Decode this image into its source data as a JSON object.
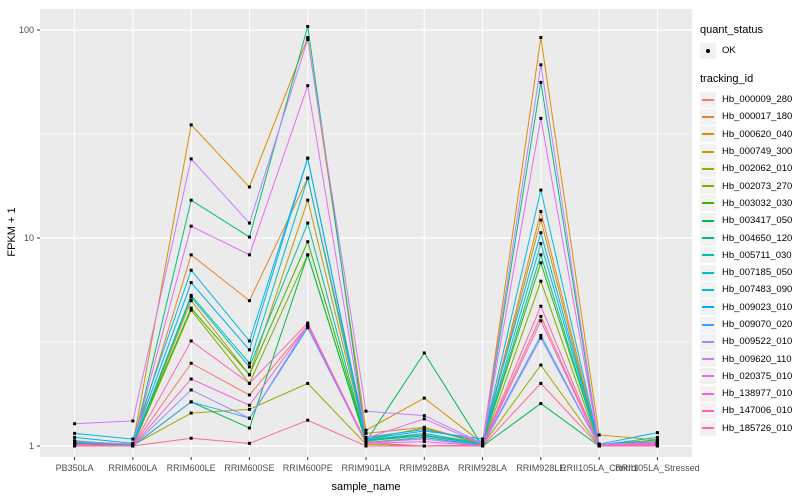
{
  "chart_data": {
    "type": "line",
    "title": "",
    "xlabel": "sample_name",
    "ylabel": "FPKM + 1",
    "y_scale": "log10",
    "y_ticks": [
      "1",
      "10",
      "100"
    ],
    "y_minor_ticks": [
      3.1623,
      31.623
    ],
    "ylim": [
      0.88,
      125
    ],
    "grid": true,
    "legend_position": "right",
    "point_label": "OK",
    "categories": [
      "PB350LA",
      "RRIM600LA",
      "RRIM600LE",
      "RRIM600SE",
      "RRIM600PE",
      "RRIM901LA",
      "RRIM928BA",
      "RRIM928LA",
      "RRIM928LE",
      "RRII105LA_Control",
      "RRII105LA_Stressed"
    ],
    "series": [
      {
        "name": "Hb_000009_280",
        "color": "#F8766D",
        "values": [
          1.02,
          1.0,
          2.5,
          1.76,
          3.8,
          1.05,
          1.15,
          1.02,
          4.2,
          1.0,
          1.02
        ]
      },
      {
        "name": "Hb_000017_180",
        "color": "#EA8331",
        "values": [
          1.03,
          1.0,
          8.3,
          5.0,
          19.4,
          1.15,
          1.23,
          1.03,
          13.4,
          1.02,
          1.05
        ]
      },
      {
        "name": "Hb_000620_040",
        "color": "#D89000",
        "values": [
          1.05,
          1.02,
          35.0,
          17.6,
          92.0,
          1.19,
          1.7,
          1.03,
          92.0,
          1.13,
          1.07
        ]
      },
      {
        "name": "Hb_000749_300",
        "color": "#C09B00",
        "values": [
          1.02,
          1.0,
          5.0,
          2.2,
          15.2,
          1.08,
          1.22,
          1.02,
          12.2,
          1.0,
          1.03
        ]
      },
      {
        "name": "Hb_002062_010",
        "color": "#A3A500",
        "values": [
          1.04,
          1.01,
          1.44,
          1.5,
          2.0,
          1.02,
          1.0,
          1.01,
          2.45,
          1.0,
          1.01
        ]
      },
      {
        "name": "Hb_002073_270",
        "color": "#7CAE00",
        "values": [
          1.02,
          1.0,
          4.5,
          2.0,
          8.3,
          1.04,
          1.1,
          1.0,
          6.2,
          1.0,
          1.02
        ]
      },
      {
        "name": "Hb_003032_030",
        "color": "#39B600",
        "values": [
          1.05,
          1.02,
          4.6,
          2.2,
          9.6,
          1.06,
          1.12,
          1.02,
          7.6,
          1.01,
          1.07
        ]
      },
      {
        "name": "Hb_003417_050",
        "color": "#00BB4E",
        "values": [
          1.03,
          1.0,
          1.63,
          1.22,
          8.3,
          1.05,
          2.8,
          1.0,
          1.6,
          1.0,
          1.03
        ]
      },
      {
        "name": "Hb_004650_120",
        "color": "#00BF7D",
        "values": [
          1.03,
          1.01,
          15.2,
          10.1,
          104.0,
          1.07,
          1.12,
          1.02,
          56.0,
          1.01,
          1.03
        ]
      },
      {
        "name": "Hb_005711_030",
        "color": "#00C1A3",
        "values": [
          1.06,
          1.01,
          5.2,
          2.4,
          11.8,
          1.06,
          1.13,
          1.02,
          8.3,
          1.0,
          1.04
        ]
      },
      {
        "name": "Hb_007185_050",
        "color": "#00BFC4",
        "values": [
          1.04,
          1.01,
          5.3,
          2.5,
          19.4,
          1.07,
          1.15,
          1.03,
          9.4,
          1.01,
          1.05
        ]
      },
      {
        "name": "Hb_007483_090",
        "color": "#00BAE0",
        "values": [
          1.15,
          1.08,
          7.0,
          3.2,
          24.2,
          1.1,
          1.2,
          1.05,
          17.0,
          1.02,
          1.16
        ]
      },
      {
        "name": "Hb_009023_010",
        "color": "#00B0F6",
        "values": [
          1.1,
          1.03,
          6.1,
          2.9,
          24.2,
          1.08,
          1.18,
          1.08,
          10.6,
          1.01,
          1.1
        ]
      },
      {
        "name": "Hb_009070_020",
        "color": "#35A2FF",
        "values": [
          1.02,
          1.0,
          1.63,
          1.36,
          3.7,
          1.03,
          1.1,
          1.01,
          3.4,
          1.0,
          1.02
        ]
      },
      {
        "name": "Hb_009522_010",
        "color": "#9590FF",
        "values": [
          1.01,
          1.0,
          1.86,
          1.36,
          3.8,
          1.04,
          1.08,
          1.0,
          3.3,
          1.0,
          1.01
        ]
      },
      {
        "name": "Hb_009620_110",
        "color": "#C77CFF",
        "values": [
          1.28,
          1.32,
          24.0,
          11.8,
          90.0,
          1.47,
          1.4,
          1.03,
          68.0,
          1.02,
          1.04
        ]
      },
      {
        "name": "Hb_020375_010",
        "color": "#E76BF3",
        "values": [
          1.05,
          1.02,
          11.4,
          8.3,
          54.0,
          1.09,
          1.35,
          1.02,
          37.6,
          1.01,
          1.03
        ]
      },
      {
        "name": "Hb_138977_010",
        "color": "#FA62DB",
        "values": [
          1.01,
          1.0,
          2.1,
          1.57,
          3.8,
          1.03,
          1.05,
          1.0,
          4.0,
          1.0,
          1.01
        ]
      },
      {
        "name": "Hb_147006_010",
        "color": "#FF62BC",
        "values": [
          1.02,
          1.0,
          3.2,
          2.0,
          3.9,
          1.04,
          1.0,
          1.01,
          4.7,
          1.0,
          1.02
        ]
      },
      {
        "name": "Hb_185726_010",
        "color": "#FF6A98",
        "values": [
          1.0,
          1.0,
          1.09,
          1.03,
          1.33,
          1.0,
          1.0,
          1.0,
          2.0,
          1.0,
          1.0
        ]
      }
    ]
  },
  "legend": {
    "quant_title": "quant_status",
    "quant_value": "OK",
    "tracking_title": "tracking_id"
  },
  "colors": {
    "panel_bg": "#EBEBEB",
    "grid": "#FFFFFF",
    "key_bg": "#F2F2F2",
    "tick_label": "#4D4D4D",
    "tick_mark": "#333333",
    "point": "#000000"
  }
}
